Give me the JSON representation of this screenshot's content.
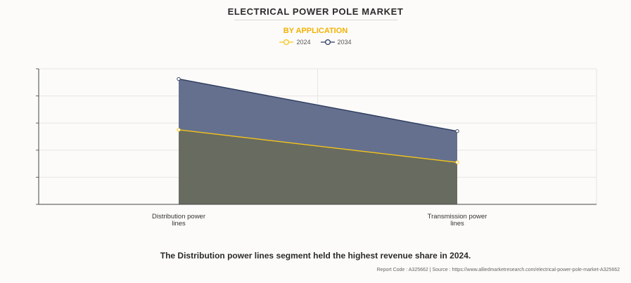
{
  "header": {
    "title": "ELECTRICAL POWER POLE MARKET",
    "subtitle": "BY APPLICATION"
  },
  "legend": {
    "items": [
      {
        "label": "2024",
        "color": "#f5c518"
      },
      {
        "label": "2034",
        "color": "#2c3a5e"
      }
    ]
  },
  "chart_data": {
    "type": "area",
    "title": "ELECTRICAL POWER POLE MARKET",
    "subtitle": "BY APPLICATION",
    "categories": [
      "Distribution power lines",
      "Transmission power lines"
    ],
    "category_lines": [
      [
        "Distribution power",
        "lines"
      ],
      [
        "Transmission power",
        "lines"
      ]
    ],
    "series": [
      {
        "name": "2034",
        "values": [
          92.5,
          54
        ],
        "line_color": "#2c3a5e",
        "fill_color": "#65708e"
      },
      {
        "name": "2024",
        "values": [
          55,
          31
        ],
        "line_color": "#f5c518",
        "fill_color": "#686b60"
      }
    ],
    "ylim": [
      0,
      100
    ],
    "yticks": [
      0,
      20,
      40,
      60,
      80,
      100
    ],
    "y_tick_labels_shown": false,
    "grid": true,
    "legend_position": "top-center"
  },
  "caption": "The Distribution power lines segment held the highest revenue share in 2024.",
  "footer": "Report Code : A325662  |  Source : https://www.alliedmarketresearch.com/electrical-power-pole-market-A325662"
}
